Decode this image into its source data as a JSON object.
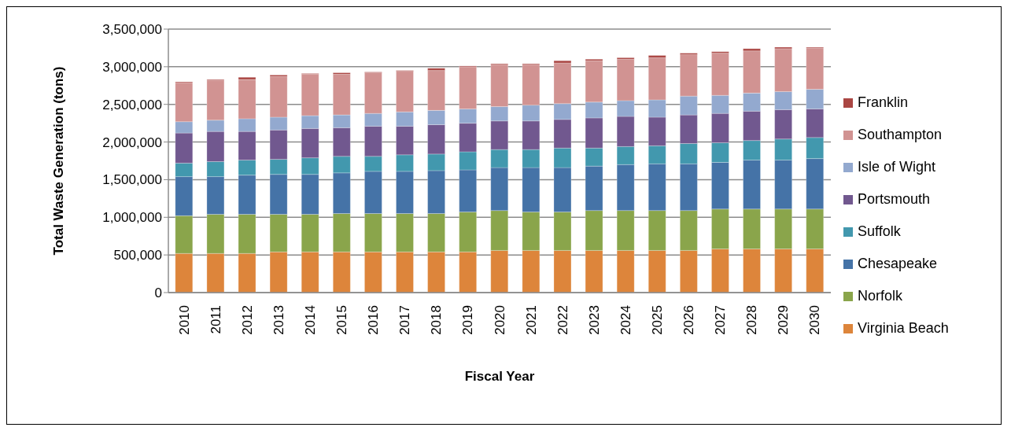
{
  "chart_data": {
    "type": "bar",
    "stacked": true,
    "xlabel": "Fiscal Year",
    "ylabel": "Total Waste Generation (tons)",
    "categories": [
      "2010",
      "2011",
      "2012",
      "2013",
      "2014",
      "2015",
      "2016",
      "2017",
      "2018",
      "2019",
      "2020",
      "2021",
      "2022",
      "2023",
      "2024",
      "2025",
      "2026",
      "2027",
      "2028",
      "2029",
      "2030"
    ],
    "series": [
      {
        "name": "Virginia Beach",
        "color": "#dd853b",
        "values": [
          520000,
          520000,
          520000,
          540000,
          540000,
          540000,
          540000,
          540000,
          540000,
          540000,
          560000,
          560000,
          560000,
          560000,
          560000,
          560000,
          560000,
          580000,
          580000,
          580000,
          580000
        ]
      },
      {
        "name": "Norfolk",
        "color": "#8aa54b",
        "values": [
          500000,
          520000,
          520000,
          500000,
          500000,
          510000,
          510000,
          510000,
          510000,
          530000,
          530000,
          510000,
          510000,
          530000,
          530000,
          530000,
          530000,
          530000,
          530000,
          530000,
          530000
        ]
      },
      {
        "name": "Chesapeake",
        "color": "#4573a7",
        "values": [
          520000,
          500000,
          520000,
          530000,
          530000,
          540000,
          560000,
          560000,
          570000,
          560000,
          570000,
          590000,
          590000,
          590000,
          610000,
          620000,
          620000,
          620000,
          650000,
          650000,
          670000
        ]
      },
      {
        "name": "Suffolk",
        "color": "#4298ae",
        "values": [
          180000,
          200000,
          200000,
          200000,
          220000,
          220000,
          200000,
          220000,
          220000,
          240000,
          240000,
          240000,
          260000,
          240000,
          240000,
          240000,
          270000,
          260000,
          260000,
          280000,
          280000
        ]
      },
      {
        "name": "Portsmouth",
        "color": "#71588f",
        "values": [
          400000,
          400000,
          380000,
          390000,
          390000,
          380000,
          400000,
          380000,
          390000,
          380000,
          380000,
          380000,
          380000,
          400000,
          400000,
          380000,
          380000,
          390000,
          390000,
          390000,
          380000
        ]
      },
      {
        "name": "Isle of Wight",
        "color": "#93a9cf",
        "values": [
          150000,
          150000,
          170000,
          170000,
          170000,
          170000,
          170000,
          190000,
          190000,
          190000,
          190000,
          210000,
          210000,
          210000,
          210000,
          230000,
          250000,
          240000,
          240000,
          240000,
          260000
        ]
      },
      {
        "name": "Southampton",
        "color": "#d19392",
        "values": [
          520000,
          530000,
          520000,
          540000,
          550000,
          540000,
          540000,
          540000,
          530000,
          560000,
          560000,
          540000,
          540000,
          550000,
          550000,
          560000,
          550000,
          560000,
          560000,
          570000,
          550000
        ]
      },
      {
        "name": "Franklin",
        "color": "#aa4643",
        "values": [
          10000,
          10000,
          30000,
          20000,
          10000,
          20000,
          10000,
          10000,
          30000,
          10000,
          10000,
          10000,
          30000,
          20000,
          20000,
          30000,
          20000,
          20000,
          30000,
          20000,
          10000
        ]
      }
    ],
    "ylim": [
      0,
      3500000
    ],
    "yticks": [
      0,
      {
        "value": 500000,
        "label": "500,000"
      },
      {
        "value": 1000000,
        "label": "1,000,000"
      },
      {
        "value": 1500000,
        "label": "1,500,000"
      },
      {
        "value": 2000000,
        "label": "2,000,000"
      },
      {
        "value": 2500000,
        "label": "2,500,000"
      },
      {
        "value": 3000000,
        "label": "3,000,000"
      },
      {
        "value": 3500000,
        "label": "3,500,000"
      }
    ],
    "grid": "y",
    "legend": "right"
  }
}
